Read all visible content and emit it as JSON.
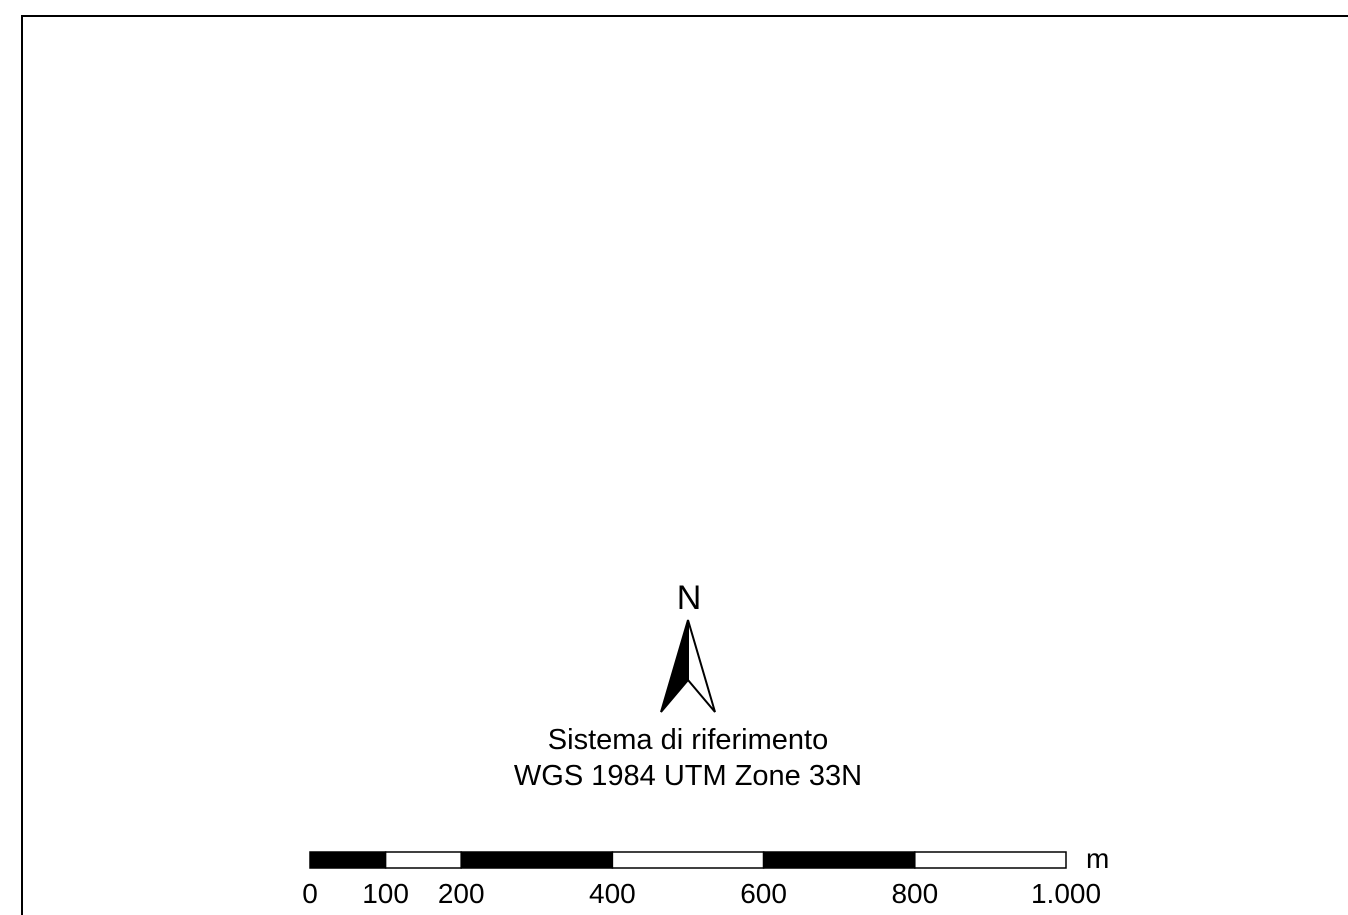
{
  "north_arrow": {
    "label": "N",
    "icon": "north-arrow-icon"
  },
  "reference_system": {
    "heading": "Sistema di riferimento",
    "name": "WGS 1984 UTM Zone 33N"
  },
  "scale_bar": {
    "unit": "m",
    "max_value": 1000,
    "segment_breaks": [
      0,
      100,
      200,
      400,
      600,
      800,
      1000
    ],
    "tick_labels": [
      {
        "value": 0,
        "text": "0"
      },
      {
        "value": 100,
        "text": "100"
      },
      {
        "value": 200,
        "text": "200"
      },
      {
        "value": 400,
        "text": "400"
      },
      {
        "value": 600,
        "text": "600"
      },
      {
        "value": 800,
        "text": "800"
      },
      {
        "value": 1000,
        "text": "1.000"
      }
    ],
    "colors": {
      "dark": "#000000",
      "light": "#ffffff"
    }
  }
}
